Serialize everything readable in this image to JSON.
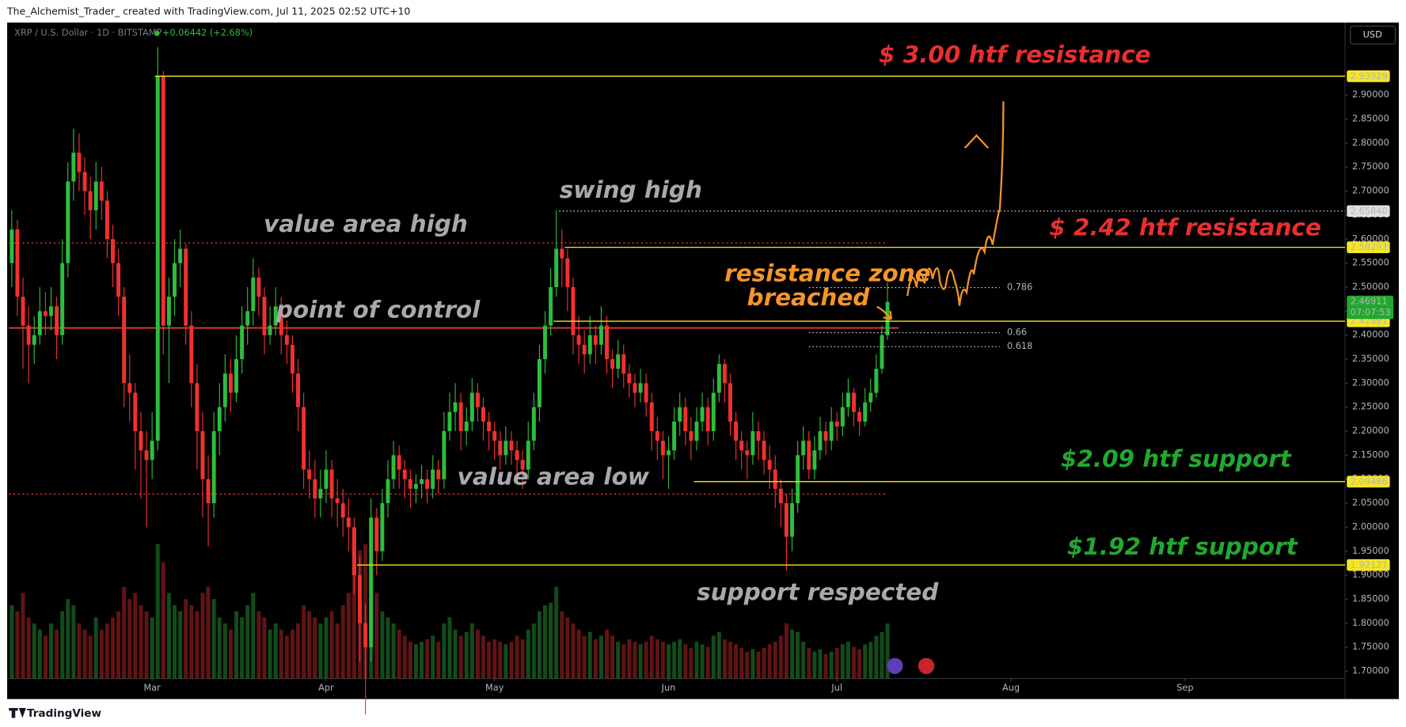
{
  "header": {
    "credit": "The_Alchemist_Trader_ created with TradingView.com, Jul 11, 2025 02:52 UTC+10",
    "footer": "TradingView"
  },
  "chart_data": {
    "type": "candlestick",
    "symbol": "XRP / U.S. Dollar · 1D · BITSTAMP",
    "change": "+0.06442 (+2.68%)",
    "currency": "USD",
    "up_color": "#2dbd3e",
    "down_color": "#f0312f",
    "xlim": [
      0,
      238
    ],
    "xticks": [
      {
        "value": 25,
        "label": "Mar"
      },
      {
        "value": 56,
        "label": "Apr"
      },
      {
        "value": 86,
        "label": "May"
      },
      {
        "value": 117,
        "label": "Jun"
      },
      {
        "value": 147,
        "label": "Jul"
      },
      {
        "value": 178,
        "label": "Aug"
      },
      {
        "value": 209,
        "label": "Sep"
      }
    ],
    "ylim": [
      1.685,
      3.051
    ],
    "yticks": [
      {
        "value": 1.7,
        "label": "1.70000"
      },
      {
        "value": 1.75,
        "label": "1.75000"
      },
      {
        "value": 1.8,
        "label": "1.80000"
      },
      {
        "value": 1.85,
        "label": "1.85000"
      },
      {
        "value": 1.9,
        "label": "1.90000"
      },
      {
        "value": 1.95,
        "label": "1.95000"
      },
      {
        "value": 2,
        "label": "2.00000"
      },
      {
        "value": 2.05,
        "label": "2.05000"
      },
      {
        "value": 2.1,
        "label": "2.10000"
      },
      {
        "value": 2.15,
        "label": "2.15000"
      },
      {
        "value": 2.2,
        "label": "2.20000"
      },
      {
        "value": 2.25,
        "label": "2.25000"
      },
      {
        "value": 2.3,
        "label": "2.30000"
      },
      {
        "value": 2.35,
        "label": "2.35000"
      },
      {
        "value": 2.4,
        "label": "2.40000"
      },
      {
        "value": 2.45,
        "label": "2.45000"
      },
      {
        "value": 2.5,
        "label": "2.50000"
      },
      {
        "value": 2.55,
        "label": "2.55000"
      },
      {
        "value": 2.6,
        "label": "2.60000"
      },
      {
        "value": 2.65,
        "label": "2.65000"
      },
      {
        "value": 2.7,
        "label": "2.70000"
      },
      {
        "value": 2.75,
        "label": "2.75000"
      },
      {
        "value": 2.8,
        "label": "2.80000"
      },
      {
        "value": 2.85,
        "label": "2.85000"
      },
      {
        "value": 2.9,
        "label": "2.90000"
      }
    ],
    "grid": false,
    "candles": [
      [
        2.55,
        2.66,
        2.5,
        2.62
      ],
      [
        2.62,
        2.64,
        2.44,
        2.48
      ],
      [
        2.48,
        2.52,
        2.33,
        2.42
      ],
      [
        2.42,
        2.46,
        2.3,
        2.38
      ],
      [
        2.38,
        2.44,
        2.34,
        2.4
      ],
      [
        2.4,
        2.5,
        2.38,
        2.45
      ],
      [
        2.45,
        2.49,
        2.4,
        2.44
      ],
      [
        2.44,
        2.5,
        2.41,
        2.46
      ],
      [
        2.46,
        2.48,
        2.35,
        2.4
      ],
      [
        2.4,
        2.6,
        2.38,
        2.55
      ],
      [
        2.55,
        2.76,
        2.52,
        2.72
      ],
      [
        2.72,
        2.83,
        2.68,
        2.78
      ],
      [
        2.78,
        2.82,
        2.7,
        2.74
      ],
      [
        2.74,
        2.77,
        2.65,
        2.7
      ],
      [
        2.7,
        2.73,
        2.6,
        2.66
      ],
      [
        2.66,
        2.76,
        2.62,
        2.72
      ],
      [
        2.72,
        2.75,
        2.64,
        2.68
      ],
      [
        2.68,
        2.7,
        2.56,
        2.6
      ],
      [
        2.6,
        2.63,
        2.5,
        2.55
      ],
      [
        2.55,
        2.58,
        2.44,
        2.48
      ],
      [
        2.48,
        2.5,
        2.25,
        2.3
      ],
      [
        2.3,
        2.36,
        2.22,
        2.28
      ],
      [
        2.28,
        2.3,
        2.12,
        2.2
      ],
      [
        2.2,
        2.24,
        2.06,
        2.16
      ],
      [
        2.16,
        2.2,
        2.0,
        2.14
      ],
      [
        2.14,
        2.24,
        2.1,
        2.18
      ],
      [
        2.18,
        3.0,
        2.16,
        2.94
      ],
      [
        2.94,
        2.95,
        2.36,
        2.42
      ],
      [
        2.42,
        2.52,
        2.3,
        2.48
      ],
      [
        2.48,
        2.6,
        2.44,
        2.55
      ],
      [
        2.55,
        2.62,
        2.5,
        2.58
      ],
      [
        2.58,
        2.59,
        2.38,
        2.42
      ],
      [
        2.42,
        2.45,
        2.25,
        2.3
      ],
      [
        2.3,
        2.34,
        2.12,
        2.2
      ],
      [
        2.2,
        2.24,
        2.02,
        2.1
      ],
      [
        2.1,
        2.15,
        1.96,
        2.05
      ],
      [
        2.05,
        2.24,
        2.02,
        2.2
      ],
      [
        2.2,
        2.3,
        2.15,
        2.25
      ],
      [
        2.25,
        2.36,
        2.22,
        2.32
      ],
      [
        2.32,
        2.35,
        2.24,
        2.28
      ],
      [
        2.28,
        2.4,
        2.26,
        2.35
      ],
      [
        2.35,
        2.46,
        2.32,
        2.42
      ],
      [
        2.42,
        2.5,
        2.38,
        2.45
      ],
      [
        2.45,
        2.56,
        2.42,
        2.52
      ],
      [
        2.52,
        2.54,
        2.44,
        2.48
      ],
      [
        2.48,
        2.5,
        2.36,
        2.4
      ],
      [
        2.4,
        2.46,
        2.38,
        2.42
      ],
      [
        2.42,
        2.5,
        2.4,
        2.46
      ],
      [
        2.46,
        2.48,
        2.36,
        2.4
      ],
      [
        2.4,
        2.43,
        2.34,
        2.38
      ],
      [
        2.38,
        2.4,
        2.28,
        2.32
      ],
      [
        2.32,
        2.35,
        2.2,
        2.25
      ],
      [
        2.25,
        2.28,
        2.08,
        2.12
      ],
      [
        2.12,
        2.16,
        2.06,
        2.1
      ],
      [
        2.1,
        2.14,
        2.02,
        2.06
      ],
      [
        2.06,
        2.12,
        2.02,
        2.08
      ],
      [
        2.08,
        2.16,
        2.05,
        2.12
      ],
      [
        2.12,
        2.14,
        2.02,
        2.06
      ],
      [
        2.06,
        2.1,
        2.0,
        2.05
      ],
      [
        2.05,
        2.08,
        1.98,
        2.02
      ],
      [
        2.02,
        2.06,
        1.95,
        2.0
      ],
      [
        2.0,
        2.02,
        1.86,
        1.9
      ],
      [
        1.9,
        1.94,
        1.72,
        1.8
      ],
      [
        1.8,
        1.84,
        1.61,
        1.75
      ],
      [
        1.75,
        2.06,
        1.72,
        2.02
      ],
      [
        2.02,
        2.04,
        1.9,
        1.95
      ],
      [
        1.95,
        2.08,
        1.93,
        2.05
      ],
      [
        2.05,
        2.14,
        2.02,
        2.1
      ],
      [
        2.1,
        2.18,
        2.08,
        2.15
      ],
      [
        2.15,
        2.17,
        2.08,
        2.12
      ],
      [
        2.12,
        2.14,
        2.06,
        2.1
      ],
      [
        2.1,
        2.12,
        2.04,
        2.08
      ],
      [
        2.08,
        2.11,
        2.05,
        2.09
      ],
      [
        2.09,
        2.13,
        2.06,
        2.1
      ],
      [
        2.1,
        2.12,
        2.05,
        2.08
      ],
      [
        2.08,
        2.15,
        2.06,
        2.12
      ],
      [
        2.12,
        2.14,
        2.07,
        2.1
      ],
      [
        2.1,
        2.24,
        2.08,
        2.2
      ],
      [
        2.2,
        2.28,
        2.18,
        2.24
      ],
      [
        2.24,
        2.3,
        2.2,
        2.26
      ],
      [
        2.26,
        2.28,
        2.16,
        2.2
      ],
      [
        2.2,
        2.25,
        2.17,
        2.22
      ],
      [
        2.22,
        2.31,
        2.2,
        2.28
      ],
      [
        2.28,
        2.3,
        2.22,
        2.25
      ],
      [
        2.25,
        2.27,
        2.18,
        2.22
      ],
      [
        2.22,
        2.24,
        2.16,
        2.2
      ],
      [
        2.2,
        2.22,
        2.14,
        2.18
      ],
      [
        2.18,
        2.2,
        2.12,
        2.15
      ],
      [
        2.15,
        2.21,
        2.13,
        2.18
      ],
      [
        2.18,
        2.2,
        2.13,
        2.16
      ],
      [
        2.16,
        2.18,
        2.1,
        2.14
      ],
      [
        2.14,
        2.16,
        2.08,
        2.12
      ],
      [
        2.12,
        2.22,
        2.1,
        2.18
      ],
      [
        2.18,
        2.28,
        2.16,
        2.25
      ],
      [
        2.25,
        2.38,
        2.22,
        2.35
      ],
      [
        2.35,
        2.45,
        2.32,
        2.42
      ],
      [
        2.42,
        2.54,
        2.4,
        2.5
      ],
      [
        2.5,
        2.66,
        2.48,
        2.58
      ],
      [
        2.58,
        2.62,
        2.5,
        2.56
      ],
      [
        2.56,
        2.58,
        2.45,
        2.5
      ],
      [
        2.5,
        2.52,
        2.36,
        2.4
      ],
      [
        2.4,
        2.44,
        2.34,
        2.38
      ],
      [
        2.38,
        2.41,
        2.32,
        2.36
      ],
      [
        2.36,
        2.44,
        2.34,
        2.4
      ],
      [
        2.4,
        2.42,
        2.34,
        2.38
      ],
      [
        2.38,
        2.46,
        2.36,
        2.42
      ],
      [
        2.42,
        2.44,
        2.32,
        2.35
      ],
      [
        2.35,
        2.37,
        2.29,
        2.33
      ],
      [
        2.33,
        2.39,
        2.31,
        2.36
      ],
      [
        2.36,
        2.38,
        2.29,
        2.32
      ],
      [
        2.32,
        2.34,
        2.27,
        2.3
      ],
      [
        2.3,
        2.32,
        2.25,
        2.28
      ],
      [
        2.28,
        2.33,
        2.26,
        2.3
      ],
      [
        2.3,
        2.32,
        2.23,
        2.26
      ],
      [
        2.26,
        2.28,
        2.16,
        2.2
      ],
      [
        2.2,
        2.23,
        2.14,
        2.18
      ],
      [
        2.18,
        2.2,
        2.1,
        2.15
      ],
      [
        2.15,
        2.19,
        2.08,
        2.16
      ],
      [
        2.16,
        2.25,
        2.14,
        2.22
      ],
      [
        2.22,
        2.28,
        2.19,
        2.25
      ],
      [
        2.25,
        2.27,
        2.17,
        2.2
      ],
      [
        2.2,
        2.23,
        2.14,
        2.18
      ],
      [
        2.18,
        2.25,
        2.16,
        2.22
      ],
      [
        2.22,
        2.28,
        2.2,
        2.25
      ],
      [
        2.25,
        2.27,
        2.17,
        2.2
      ],
      [
        2.2,
        2.31,
        2.18,
        2.28
      ],
      [
        2.28,
        2.36,
        2.26,
        2.34
      ],
      [
        2.34,
        2.35,
        2.26,
        2.3
      ],
      [
        2.3,
        2.32,
        2.19,
        2.22
      ],
      [
        2.22,
        2.24,
        2.14,
        2.18
      ],
      [
        2.18,
        2.2,
        2.12,
        2.16
      ],
      [
        2.16,
        2.18,
        2.1,
        2.15
      ],
      [
        2.15,
        2.24,
        2.13,
        2.2
      ],
      [
        2.2,
        2.22,
        2.14,
        2.18
      ],
      [
        2.18,
        2.2,
        2.11,
        2.14
      ],
      [
        2.14,
        2.17,
        2.08,
        2.12
      ],
      [
        2.12,
        2.15,
        2.04,
        2.08
      ],
      [
        2.08,
        2.1,
        2.0,
        2.05
      ],
      [
        2.05,
        2.07,
        1.91,
        1.98
      ],
      [
        1.98,
        2.08,
        1.95,
        2.05
      ],
      [
        2.05,
        2.18,
        2.03,
        2.15
      ],
      [
        2.15,
        2.21,
        2.12,
        2.18
      ],
      [
        2.18,
        2.2,
        2.1,
        2.12
      ],
      [
        2.12,
        2.19,
        2.1,
        2.16
      ],
      [
        2.16,
        2.23,
        2.14,
        2.2
      ],
      [
        2.2,
        2.22,
        2.15,
        2.18
      ],
      [
        2.18,
        2.25,
        2.16,
        2.22
      ],
      [
        2.22,
        2.24,
        2.18,
        2.21
      ],
      [
        2.21,
        2.28,
        2.19,
        2.25
      ],
      [
        2.25,
        2.31,
        2.23,
        2.28
      ],
      [
        2.28,
        2.29,
        2.21,
        2.24
      ],
      [
        2.24,
        2.25,
        2.19,
        2.22
      ],
      [
        2.22,
        2.29,
        2.21,
        2.26
      ],
      [
        2.26,
        2.31,
        2.24,
        2.28
      ],
      [
        2.28,
        2.36,
        2.27,
        2.33
      ],
      [
        2.33,
        2.42,
        2.32,
        2.4
      ],
      [
        2.4,
        2.51,
        2.39,
        2.469
      ]
    ],
    "volume": [
      60,
      55,
      70,
      50,
      45,
      40,
      35,
      45,
      40,
      55,
      65,
      60,
      45,
      40,
      35,
      50,
      40,
      45,
      50,
      55,
      75,
      65,
      70,
      60,
      55,
      50,
      110,
      95,
      70,
      60,
      55,
      65,
      60,
      55,
      70,
      75,
      65,
      50,
      45,
      40,
      55,
      50,
      60,
      70,
      55,
      50,
      40,
      45,
      40,
      35,
      40,
      45,
      60,
      55,
      50,
      45,
      50,
      55,
      45,
      60,
      70,
      95,
      105,
      110,
      95,
      70,
      55,
      50,
      45,
      40,
      35,
      30,
      28,
      30,
      32,
      35,
      30,
      45,
      50,
      40,
      35,
      38,
      45,
      40,
      35,
      30,
      32,
      30,
      28,
      30,
      35,
      32,
      40,
      45,
      55,
      60,
      62,
      75,
      55,
      50,
      45,
      40,
      35,
      38,
      32,
      35,
      40,
      35,
      30,
      28,
      32,
      30,
      28,
      30,
      35,
      32,
      30,
      28,
      30,
      32,
      28,
      25,
      30,
      28,
      26,
      35,
      38,
      32,
      30,
      28,
      25,
      22,
      24,
      22,
      25,
      28,
      30,
      35,
      45,
      40,
      38,
      30,
      25,
      22,
      24,
      20,
      22,
      25,
      28,
      30,
      26,
      24,
      28,
      30,
      35,
      38,
      45
    ],
    "levels": [
      {
        "value": 2.93929,
        "label": "2.93929",
        "start": 26,
        "color": "#f5e625",
        "style": "solid"
      },
      {
        "value": 2.6584,
        "label": "2.65840",
        "start": 98,
        "color": "#bbbbbb",
        "style": "dotted"
      },
      {
        "value": 2.58293,
        "label": "2.58293",
        "start": 99,
        "color": "#f5e625",
        "style": "solid"
      },
      {
        "value": 2.42891,
        "label": "2.42891",
        "start": 97,
        "color": "#f5e625",
        "style": "solid"
      },
      {
        "value": 2.09486,
        "label": "2.09486",
        "start": 122,
        "color": "#f5e625",
        "style": "solid"
      },
      {
        "value": 1.92127,
        "label": "1.92127",
        "start": 62,
        "color": "#f5e625",
        "style": "solid"
      }
    ],
    "zones": [
      {
        "value": 2.592,
        "start": 0,
        "end": 156,
        "color": "#e33a3a",
        "style": "dotted"
      },
      {
        "value": 2.415,
        "start": 0,
        "end": 158,
        "color": "#e33a3a",
        "style": "solid"
      },
      {
        "value": 2.069,
        "start": 0,
        "end": 156,
        "color": "#e33a3a",
        "style": "dotted"
      }
    ],
    "fib": [
      {
        "ratio": 0.786,
        "price": 2.499
      },
      {
        "ratio": 0.66,
        "price": 2.405
      },
      {
        "ratio": 0.618,
        "price": 2.376
      }
    ],
    "fib_start": 142,
    "fib_end": 176,
    "last": {
      "value": 2.46911,
      "label": "2.46911",
      "countdown": "07:07:53"
    },
    "annotations": [
      {
        "text": "$ 3.00 htf resistance"
      },
      {
        "text": "swing high"
      },
      {
        "text": "value area high"
      },
      {
        "text": "$ 2.42 htf resistance"
      },
      {
        "text": "point of control"
      },
      {
        "text": "resistance zone"
      },
      {
        "text": "breached"
      },
      {
        "text": "value area low"
      },
      {
        "text": "$2.09 htf support"
      },
      {
        "text": "$1.92 htf support"
      },
      {
        "text": "support respected"
      }
    ]
  }
}
